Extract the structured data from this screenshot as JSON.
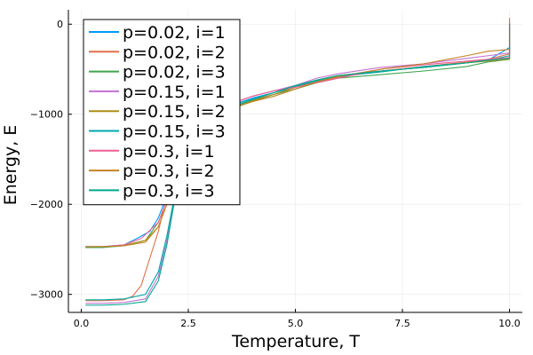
{
  "chart_data": {
    "type": "line",
    "title": "",
    "xlabel": "Temperature, T",
    "ylabel": "Energy, E",
    "xlim": [
      -0.3,
      10.3
    ],
    "ylim": [
      -3200,
      160
    ],
    "xticks": [
      0,
      2.5,
      5,
      7.5,
      10
    ],
    "xtick_labels": [
      "0.0",
      "2.5",
      "5.0",
      "7.5",
      "10.0"
    ],
    "yticks": [
      -3000,
      -2000,
      -1000,
      0
    ],
    "ytick_labels": [
      "−3000",
      "−2000",
      "−1000",
      "0"
    ],
    "grid": true,
    "legend_position": "top-left",
    "series": [
      {
        "name": "p=0.02, i=1",
        "color": "#009AFA",
        "x": [
          0.1,
          0.5,
          1.0,
          1.3,
          1.6,
          1.8,
          2.0,
          2.2,
          2.5,
          3.0,
          3.5,
          4.0,
          4.5,
          5.0,
          5.5,
          6.0,
          7.0,
          8.0,
          9.0,
          9.5,
          10.0,
          10.0
        ],
        "y": [
          -2470,
          -2470,
          -2450,
          -2380,
          -2300,
          -2150,
          -1900,
          -1500,
          -1150,
          -1000,
          -900,
          -820,
          -760,
          -700,
          -640,
          -580,
          -520,
          -480,
          -430,
          -400,
          -260,
          20
        ]
      },
      {
        "name": "p=0.02, i=2",
        "color": "#E36F47",
        "x": [
          0.1,
          0.5,
          1.0,
          1.2,
          1.4,
          1.6,
          1.8,
          2.0,
          2.2,
          2.5,
          3.0,
          3.5,
          4.0,
          4.5,
          5.0,
          5.5,
          6.0,
          7.0,
          8.0,
          9.0,
          9.5,
          10.0,
          10.0
        ],
        "y": [
          -3070,
          -3070,
          -3060,
          -3020,
          -2900,
          -2600,
          -2300,
          -1900,
          -1500,
          -1120,
          -1000,
          -920,
          -840,
          -780,
          -700,
          -640,
          -590,
          -520,
          -470,
          -420,
          -390,
          -330,
          40
        ]
      },
      {
        "name": "p=0.02, i=3",
        "color": "#3EA44E",
        "x": [
          0.1,
          0.5,
          1.0,
          1.5,
          1.8,
          2.0,
          2.2,
          2.5,
          3.0,
          3.5,
          4.0,
          4.5,
          5.0,
          5.5,
          6.0,
          7.0,
          8.0,
          9.0,
          9.5,
          10.0,
          10.0
        ],
        "y": [
          -2480,
          -2480,
          -2460,
          -2400,
          -2200,
          -1950,
          -1600,
          -1180,
          -1010,
          -930,
          -860,
          -780,
          -720,
          -650,
          -600,
          -560,
          -520,
          -470,
          -420,
          -390,
          0
        ]
      },
      {
        "name": "p=0.15, i=1",
        "color": "#C271D2",
        "x": [
          0.1,
          0.5,
          1.0,
          1.5,
          1.8,
          2.0,
          2.2,
          2.5,
          3.0,
          3.5,
          4.0,
          4.5,
          5.0,
          5.5,
          6.0,
          7.0,
          8.0,
          9.0,
          9.5,
          10.0,
          10.0
        ],
        "y": [
          -3100,
          -3100,
          -3090,
          -3050,
          -2800,
          -2400,
          -1900,
          -1200,
          -960,
          -880,
          -800,
          -740,
          -680,
          -600,
          -550,
          -480,
          -440,
          -380,
          -350,
          -320,
          30
        ]
      },
      {
        "name": "p=0.15, i=2",
        "color": "#AC8D18",
        "x": [
          0.1,
          0.5,
          1.0,
          1.5,
          1.8,
          2.0,
          2.2,
          2.5,
          3.0,
          3.5,
          4.0,
          4.5,
          5.0,
          5.5,
          6.0,
          7.0,
          8.0,
          9.0,
          9.5,
          10.0,
          10.0
        ],
        "y": [
          -2470,
          -2470,
          -2455,
          -2400,
          -2250,
          -2000,
          -1650,
          -1210,
          -1020,
          -920,
          -850,
          -780,
          -700,
          -620,
          -570,
          -520,
          -480,
          -430,
          -410,
          -390,
          -60
        ]
      },
      {
        "name": "p=0.15, i=3",
        "color": "#00A9AD",
        "x": [
          0.1,
          0.5,
          1.0,
          1.5,
          1.8,
          2.0,
          2.2,
          2.5,
          3.0,
          3.5,
          4.0,
          4.5,
          5.0,
          5.5,
          6.0,
          7.0,
          8.0,
          9.0,
          9.5,
          10.0,
          10.0
        ],
        "y": [
          -3060,
          -3060,
          -3050,
          -3000,
          -2750,
          -2350,
          -1850,
          -1260,
          -1000,
          -900,
          -830,
          -760,
          -690,
          -630,
          -580,
          -530,
          -470,
          -430,
          -400,
          -350,
          -40
        ]
      },
      {
        "name": "p=0.3, i=1",
        "color": "#ED5E93",
        "x": [
          0.1,
          0.5,
          1.0,
          1.4,
          1.8,
          2.0,
          2.2,
          2.5,
          3.0,
          3.5,
          4.0,
          4.5,
          5.0,
          5.5,
          6.0,
          7.0,
          8.0,
          9.0,
          9.5,
          10.0,
          10.0
        ],
        "y": [
          -2470,
          -2470,
          -2450,
          -2380,
          -2200,
          -1950,
          -1600,
          -1150,
          -980,
          -880,
          -800,
          -740,
          -700,
          -650,
          -600,
          -500,
          -450,
          -410,
          -390,
          -370,
          0
        ]
      },
      {
        "name": "p=0.3, i=2",
        "color": "#C68225",
        "x": [
          0.1,
          0.5,
          1.0,
          1.5,
          1.8,
          2.0,
          2.2,
          2.5,
          3.0,
          3.5,
          4.0,
          4.5,
          5.0,
          5.5,
          6.0,
          7.0,
          8.0,
          9.0,
          9.5,
          10.0,
          10.0
        ],
        "y": [
          -2470,
          -2470,
          -2460,
          -2420,
          -2250,
          -2000,
          -1650,
          -1200,
          -1020,
          -940,
          -860,
          -800,
          -720,
          -640,
          -580,
          -500,
          -440,
          -350,
          -300,
          -280,
          70
        ]
      },
      {
        "name": "p=0.3, i=3",
        "color": "#00A98D",
        "x": [
          0.1,
          0.5,
          1.0,
          1.5,
          1.8,
          2.0,
          2.2,
          2.5,
          3.0,
          3.5,
          4.0,
          4.5,
          5.0,
          5.5,
          6.0,
          7.0,
          8.0,
          9.0,
          9.5,
          10.0,
          10.0
        ],
        "y": [
          -3120,
          -3120,
          -3110,
          -3080,
          -2850,
          -2450,
          -1900,
          -1250,
          -1000,
          -920,
          -840,
          -760,
          -680,
          -620,
          -570,
          -520,
          -480,
          -430,
          -400,
          -380,
          0
        ]
      }
    ]
  }
}
